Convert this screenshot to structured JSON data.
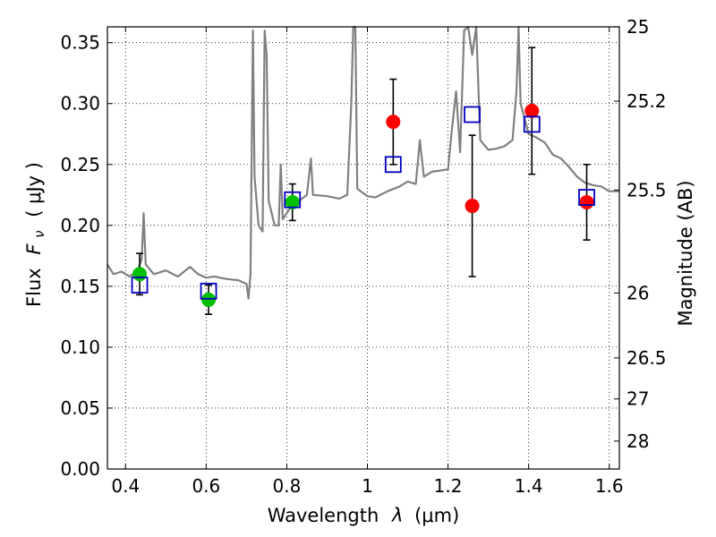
{
  "chart_data": {
    "type": "scatter",
    "xlabel_text": "Wavelength",
    "xlabel_symbol": "λ",
    "xlabel_unit": "(μm)",
    "ylabel_text": "Flux",
    "ylabel_symbol": "F",
    "ylabel_subscript": "ν",
    "ylabel_unit": "( μJy )",
    "y2label": "Magnitude (AB)",
    "xlim": [
      0.355,
      1.625
    ],
    "ylim": [
      0.0,
      0.363
    ],
    "grid": true,
    "xticks": [
      0.4,
      0.6,
      0.8,
      1.0,
      1.2,
      1.4,
      1.6
    ],
    "xtick_labels": [
      "0.4",
      "0.6",
      "0.8",
      "1",
      "1.2",
      "1.4",
      "1.6"
    ],
    "yticks": [
      0.0,
      0.05,
      0.1,
      0.15,
      0.2,
      0.25,
      0.3,
      0.35
    ],
    "ytick_labels": [
      "0.00",
      "0.05",
      "0.10",
      "0.15",
      "0.20",
      "0.25",
      "0.30",
      "0.35"
    ],
    "y2ticks": [
      {
        "label": "25",
        "flux": 0.3631
      },
      {
        "label": "25.2",
        "flux": 0.302
      },
      {
        "label": "25.5",
        "flux": 0.229
      },
      {
        "label": "26",
        "flux": 0.1445
      },
      {
        "label": "26.5",
        "flux": 0.0912
      },
      {
        "label": "27",
        "flux": 0.0575
      },
      {
        "label": "28",
        "flux": 0.0229
      }
    ],
    "series": [
      {
        "marker": "circle-filled",
        "color": "#00c000",
        "points": [
          {
            "x": 0.435,
            "y": 0.16,
            "err": 0.017
          },
          {
            "x": 0.606,
            "y": 0.139,
            "err": 0.012
          },
          {
            "x": 0.814,
            "y": 0.219,
            "err": 0.015
          }
        ]
      },
      {
        "marker": "circle-filled",
        "color": "#ff0000",
        "points": [
          {
            "x": 1.064,
            "y": 0.285,
            "err": 0.035
          },
          {
            "x": 1.26,
            "y": 0.216,
            "err": 0.058
          },
          {
            "x": 1.408,
            "y": 0.294,
            "err": 0.052
          },
          {
            "x": 1.544,
            "y": 0.219,
            "err": 0.031
          }
        ]
      },
      {
        "marker": "square-open",
        "color": "#0000c0",
        "points": [
          {
            "x": 0.435,
            "y": 0.151
          },
          {
            "x": 0.606,
            "y": 0.146
          },
          {
            "x": 0.814,
            "y": 0.221
          },
          {
            "x": 1.064,
            "y": 0.25
          },
          {
            "x": 1.26,
            "y": 0.291
          },
          {
            "x": 1.408,
            "y": 0.283
          },
          {
            "x": 1.544,
            "y": 0.223
          }
        ]
      },
      {
        "marker": "line",
        "color": "#808080",
        "points": [
          [
            0.355,
            0.168
          ],
          [
            0.37,
            0.16
          ],
          [
            0.39,
            0.162
          ],
          [
            0.41,
            0.158
          ],
          [
            0.43,
            0.163
          ],
          [
            0.44,
            0.172
          ],
          [
            0.445,
            0.21
          ],
          [
            0.45,
            0.168
          ],
          [
            0.47,
            0.16
          ],
          [
            0.5,
            0.163
          ],
          [
            0.53,
            0.158
          ],
          [
            0.56,
            0.166
          ],
          [
            0.58,
            0.16
          ],
          [
            0.6,
            0.157
          ],
          [
            0.62,
            0.158
          ],
          [
            0.65,
            0.156
          ],
          [
            0.68,
            0.155
          ],
          [
            0.7,
            0.152
          ],
          [
            0.705,
            0.14
          ],
          [
            0.71,
            0.16
          ],
          [
            0.712,
            0.23
          ],
          [
            0.716,
            0.36
          ],
          [
            0.72,
            0.24
          ],
          [
            0.73,
            0.2
          ],
          [
            0.74,
            0.195
          ],
          [
            0.745,
            0.36
          ],
          [
            0.75,
            0.34
          ],
          [
            0.755,
            0.22
          ],
          [
            0.77,
            0.2
          ],
          [
            0.78,
            0.2
          ],
          [
            0.785,
            0.25
          ],
          [
            0.79,
            0.205
          ],
          [
            0.81,
            0.215
          ],
          [
            0.83,
            0.22
          ],
          [
            0.85,
            0.225
          ],
          [
            0.86,
            0.255
          ],
          [
            0.865,
            0.225
          ],
          [
            0.9,
            0.224
          ],
          [
            0.93,
            0.222
          ],
          [
            0.95,
            0.225
          ],
          [
            0.96,
            0.3
          ],
          [
            0.965,
            0.363
          ],
          [
            0.97,
            0.363
          ],
          [
            0.975,
            0.23
          ],
          [
            1.0,
            0.224
          ],
          [
            1.02,
            0.223
          ],
          [
            1.05,
            0.228
          ],
          [
            1.08,
            0.232
          ],
          [
            1.1,
            0.236
          ],
          [
            1.12,
            0.234
          ],
          [
            1.13,
            0.27
          ],
          [
            1.14,
            0.24
          ],
          [
            1.16,
            0.244
          ],
          [
            1.18,
            0.245
          ],
          [
            1.2,
            0.246
          ],
          [
            1.21,
            0.28
          ],
          [
            1.22,
            0.31
          ],
          [
            1.23,
            0.26
          ],
          [
            1.24,
            0.36
          ],
          [
            1.25,
            0.363
          ],
          [
            1.26,
            0.34
          ],
          [
            1.27,
            0.363
          ],
          [
            1.28,
            0.27
          ],
          [
            1.3,
            0.262
          ],
          [
            1.32,
            0.263
          ],
          [
            1.34,
            0.265
          ],
          [
            1.36,
            0.27
          ],
          [
            1.37,
            0.31
          ],
          [
            1.375,
            0.363
          ],
          [
            1.38,
            0.3
          ],
          [
            1.4,
            0.275
          ],
          [
            1.42,
            0.272
          ],
          [
            1.44,
            0.268
          ],
          [
            1.46,
            0.258
          ],
          [
            1.48,
            0.255
          ],
          [
            1.5,
            0.248
          ],
          [
            1.52,
            0.24
          ],
          [
            1.54,
            0.235
          ],
          [
            1.56,
            0.233
          ],
          [
            1.58,
            0.232
          ],
          [
            1.6,
            0.228
          ],
          [
            1.625,
            0.228
          ]
        ]
      }
    ]
  }
}
